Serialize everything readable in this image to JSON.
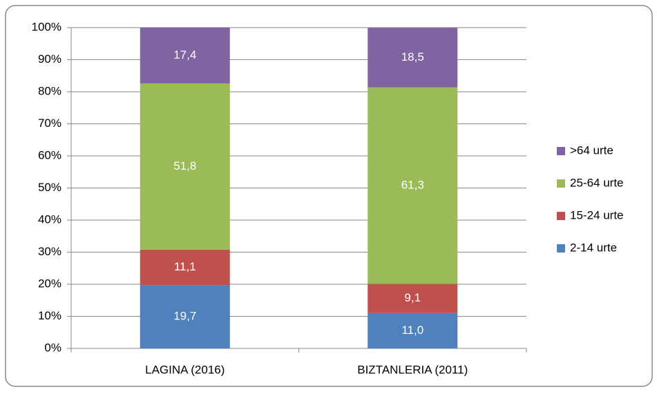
{
  "chart_data": {
    "type": "stacked_bar",
    "categories": [
      "LAGINA (2016)",
      "BIZTANLERIA (2011)"
    ],
    "series": [
      {
        "name": "2-14 urte",
        "color": "#4f81bd",
        "values": [
          19.7,
          11.0
        ],
        "value_labels": [
          "19,7",
          "11,0"
        ]
      },
      {
        "name": "15-24 urte",
        "color": "#c0504d",
        "values": [
          11.1,
          9.1
        ],
        "value_labels": [
          "11,1",
          "9,1"
        ]
      },
      {
        "name": "25-64 urte",
        "color": "#9bbb59",
        "values": [
          51.8,
          61.3
        ],
        "value_labels": [
          "51,8",
          "61,3"
        ]
      },
      {
        "name": ">64 urte",
        "color": "#8064a2",
        "values": [
          17.4,
          18.5
        ],
        "value_labels": [
          "17,4",
          "18,5"
        ]
      }
    ],
    "ylim": [
      0,
      100
    ],
    "yticks": [
      {
        "value": 0,
        "label": "0%"
      },
      {
        "value": 10,
        "label": "10%"
      },
      {
        "value": 20,
        "label": "20%"
      },
      {
        "value": 30,
        "label": "30%"
      },
      {
        "value": 40,
        "label": "40%"
      },
      {
        "value": 50,
        "label": "50%"
      },
      {
        "value": 60,
        "label": "60%"
      },
      {
        "value": 70,
        "label": "70%"
      },
      {
        "value": 80,
        "label": "80%"
      },
      {
        "value": 90,
        "label": "90%"
      },
      {
        "value": 100,
        "label": "100%"
      }
    ],
    "grid": true,
    "legend": "right"
  }
}
